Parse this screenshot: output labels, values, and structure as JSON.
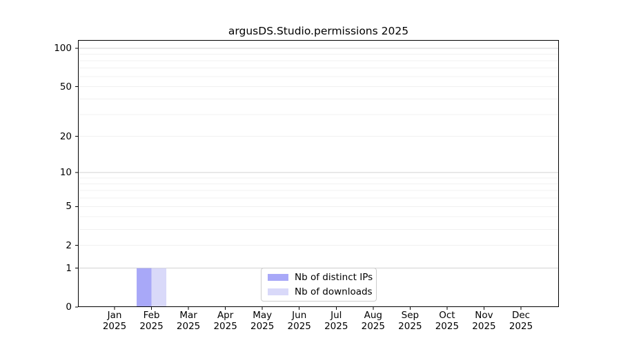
{
  "chart_data": {
    "type": "bar",
    "title": "argusDS.Studio.permissions 2025",
    "categories": [
      "Jan 2025",
      "Feb 2025",
      "Mar 2025",
      "Apr 2025",
      "May 2025",
      "Jun 2025",
      "Jul 2025",
      "Aug 2025",
      "Sep 2025",
      "Oct 2025",
      "Nov 2025",
      "Dec 2025"
    ],
    "month_labels": [
      "Jan",
      "Feb",
      "Mar",
      "Apr",
      "May",
      "Jun",
      "Jul",
      "Aug",
      "Sep",
      "Oct",
      "Nov",
      "Dec"
    ],
    "year_label": "2025",
    "series": [
      {
        "name": "Nb of distinct IPs",
        "color": "#a8a8f8",
        "values": [
          0,
          1,
          0,
          0,
          0,
          0,
          0,
          0,
          0,
          0,
          0,
          0
        ]
      },
      {
        "name": "Nb of downloads",
        "color": "#d9d9f9",
        "values": [
          0,
          1,
          0,
          0,
          0,
          0,
          0,
          0,
          0,
          0,
          0,
          0
        ]
      }
    ],
    "xlabel": "",
    "ylabel": "",
    "y_scale": "log10(1+x)",
    "y_ticks": [
      0,
      1,
      2,
      5,
      10,
      20,
      50,
      100
    ],
    "y_minor_gridlines": [
      2,
      3,
      4,
      5,
      6,
      7,
      8,
      9,
      20,
      30,
      40,
      50,
      60,
      70,
      80,
      90
    ],
    "y_major_gridlines": [
      1,
      10,
      100
    ],
    "ylim": [
      0,
      117
    ],
    "grid": "horizontal",
    "legend_position": "lower center",
    "colors": {
      "axis": "#000000",
      "grid_minor": "#f0f0f0",
      "grid_major": "#d2d2d2",
      "background": "#ffffff",
      "legend_border": "#cccccc",
      "text": "#000000"
    }
  }
}
